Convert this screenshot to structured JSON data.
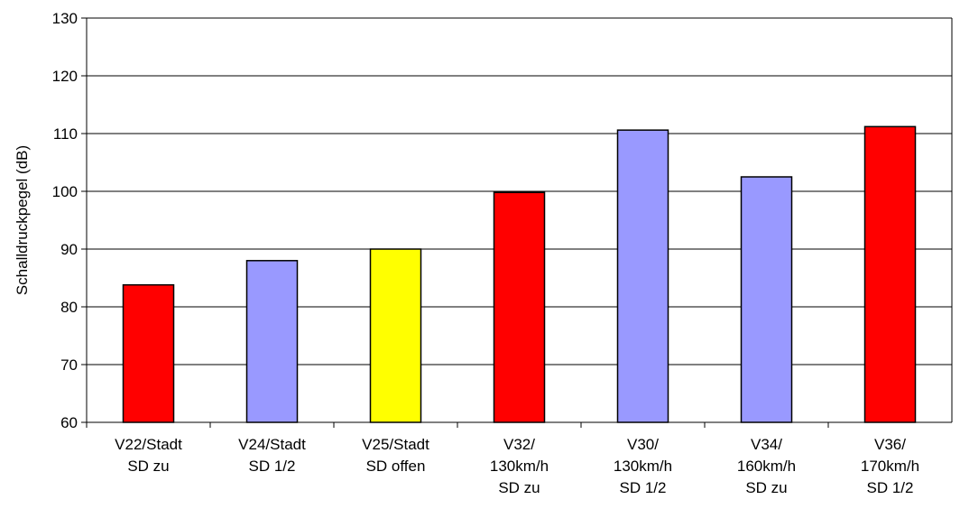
{
  "chart_data": {
    "type": "bar",
    "y_label": "Schalldruckpegel (dB)",
    "categories": [
      "V22/Stadt\nSD zu",
      "V24/Stadt\nSD 1/2",
      "V25/Stadt\nSD offen",
      "V32/\n130km/h\nSD zu",
      "V30/\n130km/h\nSD 1/2",
      "V34/\n160km/h\nSD zu",
      "V36/\n170km/h\nSD 1/2"
    ],
    "values": [
      83.8,
      88,
      90,
      99.8,
      110.6,
      102.5,
      111.2
    ],
    "colors": [
      "#ff0000",
      "#9999ff",
      "#ffff00",
      "#ff0000",
      "#9999ff",
      "#9999ff",
      "#ff0000"
    ],
    "ylim": [
      60,
      130
    ],
    "yticks": [
      60,
      70,
      80,
      90,
      100,
      110,
      120,
      130
    ],
    "grid": true
  }
}
